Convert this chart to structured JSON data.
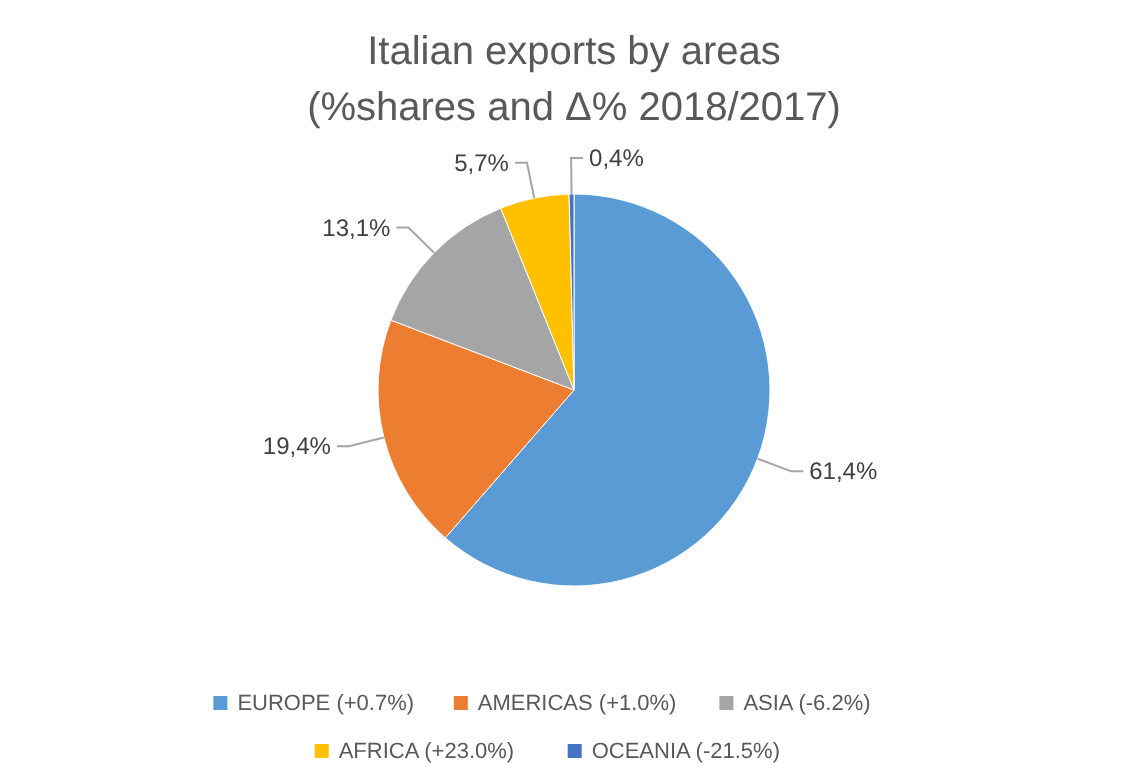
{
  "chart_data": {
    "type": "pie",
    "title": "Italian exports by areas\n(%shares and Δ% 2018/2017)",
    "categories": [
      "EUROPE (+0.7%)",
      "AMERICAS (+1.0%)",
      "ASIA (-6.2%)",
      "AFRICA (+23.0%)",
      "OCEANIA (-21.5%)"
    ],
    "values": [
      61.4,
      19.4,
      13.1,
      5.7,
      0.4
    ],
    "value_labels": [
      "61,4%",
      "19,4%",
      "13,1%",
      "5,7%",
      "0,4%"
    ],
    "colors": [
      "#5b9bd5",
      "#ed7d31",
      "#a5a5a5",
      "#ffc000",
      "#4472c4"
    ],
    "legend": "bottom"
  }
}
